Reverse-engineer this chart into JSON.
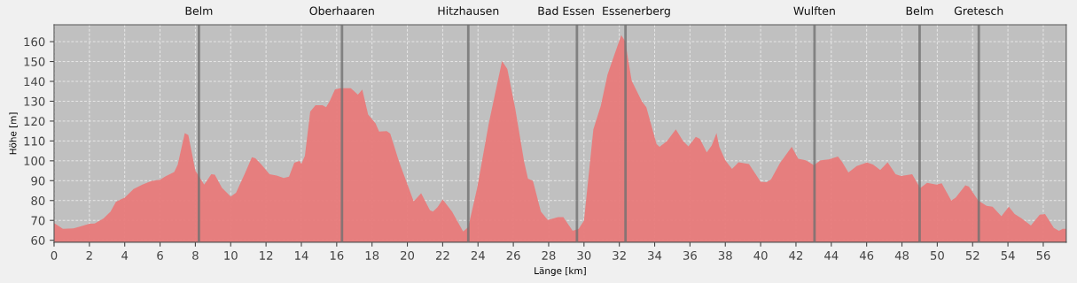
{
  "chart_data": {
    "type": "area",
    "xlabel": "Länge [km]",
    "ylabel": "Höhe [m]",
    "xlim": [
      0,
      57.3
    ],
    "ylim": [
      59,
      168.5
    ],
    "xticks": [
      0,
      2,
      4,
      6,
      8,
      10,
      12,
      14,
      16,
      18,
      20,
      22,
      24,
      26,
      28,
      30,
      32,
      34,
      36,
      38,
      40,
      42,
      44,
      46,
      48,
      50,
      52,
      54,
      56
    ],
    "yticks": [
      60,
      70,
      80,
      90,
      100,
      110,
      120,
      130,
      140,
      150,
      160
    ],
    "grid": true,
    "legend": false,
    "x": [
      0,
      0.5,
      1.1,
      1.5,
      2.0,
      2.3,
      2.8,
      3.2,
      3.5,
      3.8,
      4.0,
      4.5,
      5.0,
      5.5,
      5.8,
      6.0,
      6.3,
      6.8,
      7.0,
      7.4,
      7.6,
      7.8,
      8.0,
      8.5,
      8.9,
      9.1,
      9.5,
      10.0,
      10.3,
      10.8,
      11.2,
      11.4,
      11.7,
      12.2,
      12.6,
      13.0,
      13.3,
      13.6,
      13.9,
      14.0,
      14.2,
      14.5,
      14.8,
      15.2,
      15.4,
      15.6,
      15.9,
      16.2,
      16.8,
      17.2,
      17.45,
      17.78,
      18.2,
      18.4,
      18.83,
      19.03,
      19.53,
      20.36,
      20.78,
      21.28,
      21.45,
      21.7,
      22.0,
      22.53,
      23.16,
      23.45,
      23.95,
      24.61,
      25.36,
      25.66,
      26.11,
      26.61,
      26.83,
      27.11,
      27.56,
      27.95,
      28.53,
      28.83,
      29.36,
      29.7,
      30.0,
      30.53,
      30.95,
      31.33,
      31.7,
      32.11,
      32.33,
      32.7,
      33.28,
      33.53,
      34.11,
      34.28,
      34.7,
      35.2,
      35.61,
      35.91,
      36.33,
      36.56,
      36.95,
      37.23,
      37.5,
      37.66,
      38.0,
      38.38,
      38.75,
      39.34,
      40.0,
      40.34,
      40.59,
      41.09,
      41.76,
      42.13,
      42.56,
      43.01,
      43.4,
      43.85,
      44.38,
      44.6,
      44.97,
      45.44,
      46.02,
      46.36,
      46.77,
      47.19,
      47.64,
      47.95,
      48.58,
      49.03,
      49.42,
      49.95,
      50.25,
      50.79,
      51.04,
      51.59,
      51.79,
      52.32,
      52.79,
      53.13,
      53.63,
      54.05,
      54.38,
      54.76,
      55.3,
      55.8,
      56.1,
      56.6,
      56.89,
      57.1,
      57.3
    ],
    "series": [
      {
        "color": "#e87a7a",
        "values": [
          68.7,
          65.8,
          66,
          67,
          68.3,
          68.4,
          71,
          74.4,
          79.3,
          80.7,
          81.5,
          85.8,
          88,
          89.8,
          90.2,
          90.5,
          92.1,
          94.4,
          98,
          113.9,
          112.9,
          104,
          95,
          88,
          93.3,
          93,
          86.5,
          82,
          83.9,
          93.6,
          101.8,
          101.3,
          98.5,
          93.2,
          92.6,
          91.4,
          92,
          99,
          99.9,
          98.5,
          102.5,
          124.7,
          128,
          128,
          127,
          130,
          135.9,
          136.6,
          136.6,
          133.3,
          135.9,
          123.3,
          118.8,
          114.7,
          115,
          113.7,
          99.6,
          79.6,
          83.7,
          75.1,
          74.4,
          76.6,
          80.6,
          74.4,
          64.4,
          66.7,
          86.2,
          118.8,
          150.2,
          146.2,
          126.2,
          99.6,
          91,
          89.9,
          74.4,
          70.2,
          71.7,
          71.7,
          64.7,
          65.8,
          69.9,
          115.9,
          127.7,
          143.3,
          152.9,
          163.3,
          160.3,
          140.3,
          129.9,
          127,
          108.4,
          107,
          109.9,
          115.9,
          109.9,
          107.3,
          112.1,
          111.1,
          104.3,
          107.7,
          114,
          107,
          100.3,
          95.9,
          99.3,
          98.4,
          89.5,
          89.2,
          90.7,
          98.8,
          107,
          101,
          100.3,
          97.8,
          100.3,
          100.7,
          102.2,
          99.6,
          94.1,
          97.4,
          99.1,
          98.1,
          95.4,
          99.3,
          93.2,
          92.4,
          93.2,
          86.2,
          88.9,
          88,
          88.7,
          80,
          81.5,
          87.7,
          87,
          80,
          77.3,
          76.9,
          72.1,
          76.9,
          73.2,
          71.1,
          67.4,
          72.9,
          73.2,
          66.2,
          64.7,
          65.8,
          65.8
        ]
      }
    ],
    "ref_lines": [
      {
        "axis": "x",
        "value": 8.2,
        "label": "Belm",
        "color": "#707070"
      },
      {
        "axis": "x",
        "value": 16.3,
        "label": "Oberhaaren",
        "color": "#707070"
      },
      {
        "axis": "x",
        "value": 23.45,
        "label": "Hitzhausen",
        "color": "#707070"
      },
      {
        "axis": "x",
        "value": 29.6,
        "label": "Bad Essen",
        "color": "#707070"
      },
      {
        "axis": "x",
        "value": 32.35,
        "label": "Essenerberg",
        "color": "#707070"
      },
      {
        "axis": "x",
        "value": 43.05,
        "label": "Wulften",
        "color": "#707070"
      },
      {
        "axis": "x",
        "value": 49.0,
        "label": "Belm",
        "color": "#707070"
      },
      {
        "axis": "x",
        "value": 52.35,
        "label": "Gretesch",
        "color": "#707070"
      }
    ]
  }
}
